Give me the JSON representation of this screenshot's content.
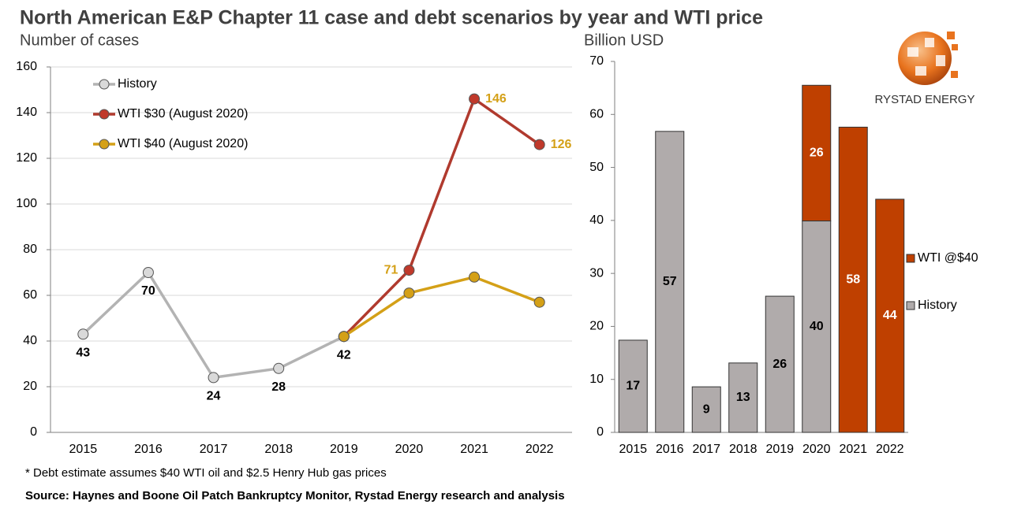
{
  "title": "North American E&P Chapter 11 case and debt scenarios by year and WTI price",
  "footnote": "* Debt estimate assumes $40 WTI oil and $2.5 Henry Hub gas prices",
  "source": "Source: Haynes and Boone Oil Patch Bankruptcy Monitor, Rystad Energy research and analysis",
  "logo": "RYSTAD ENERGY",
  "chart_data": [
    {
      "type": "line",
      "y_label": "Number of cases",
      "categories": [
        "2015",
        "2016",
        "2017",
        "2018",
        "2019",
        "2020",
        "2021",
        "2022"
      ],
      "ylim": [
        0,
        160
      ],
      "yticks": [
        0,
        20,
        40,
        60,
        80,
        100,
        120,
        140,
        160
      ],
      "grid": true,
      "legend": "upper left",
      "series": [
        {
          "name": "History",
          "color": "#b3b3b3",
          "marker_color": "#d9d9d9",
          "label_color": "#000000",
          "label_position": "below",
          "values": [
            43,
            70,
            24,
            28,
            42,
            null,
            null,
            null
          ]
        },
        {
          "name": "WTI $30 (August 2020)",
          "color": "#b03a2e",
          "marker_color": "#c0392b",
          "label_color": "#d4a017",
          "label_position": "side",
          "values": [
            null,
            null,
            null,
            null,
            42,
            71,
            146,
            126
          ]
        },
        {
          "name": "WTI $40 (August 2020)",
          "color": "#d4a017",
          "marker_color": "#d4a017",
          "label_color": "#2e7d5b",
          "label_position": "below",
          "values": [
            null,
            null,
            null,
            null,
            42,
            61,
            68,
            57
          ]
        }
      ]
    },
    {
      "type": "stacked_bar",
      "y_label": "Billion USD",
      "categories": [
        "2015",
        "2016",
        "2017",
        "2018",
        "2019",
        "2020",
        "2021",
        "2022"
      ],
      "ylim": [
        0,
        70
      ],
      "yticks": [
        0,
        10,
        20,
        30,
        40,
        50,
        60,
        70
      ],
      "grid": false,
      "legend": "right",
      "series": [
        {
          "name": "History",
          "color": "#b0abab",
          "label_color": "#000000",
          "values": [
            17.4,
            56.8,
            8.6,
            13.1,
            25.7,
            39.9,
            null,
            null
          ],
          "value_labels": [
            "17",
            "57",
            "9",
            "13",
            "26",
            "40",
            null,
            null
          ]
        },
        {
          "name": "WTI @$40",
          "color": "#bf4000",
          "label_color": "#ffffff",
          "values": [
            null,
            null,
            null,
            null,
            null,
            25.6,
            57.6,
            44
          ],
          "value_labels": [
            null,
            null,
            null,
            null,
            null,
            "26",
            "58",
            "44"
          ]
        }
      ]
    }
  ]
}
